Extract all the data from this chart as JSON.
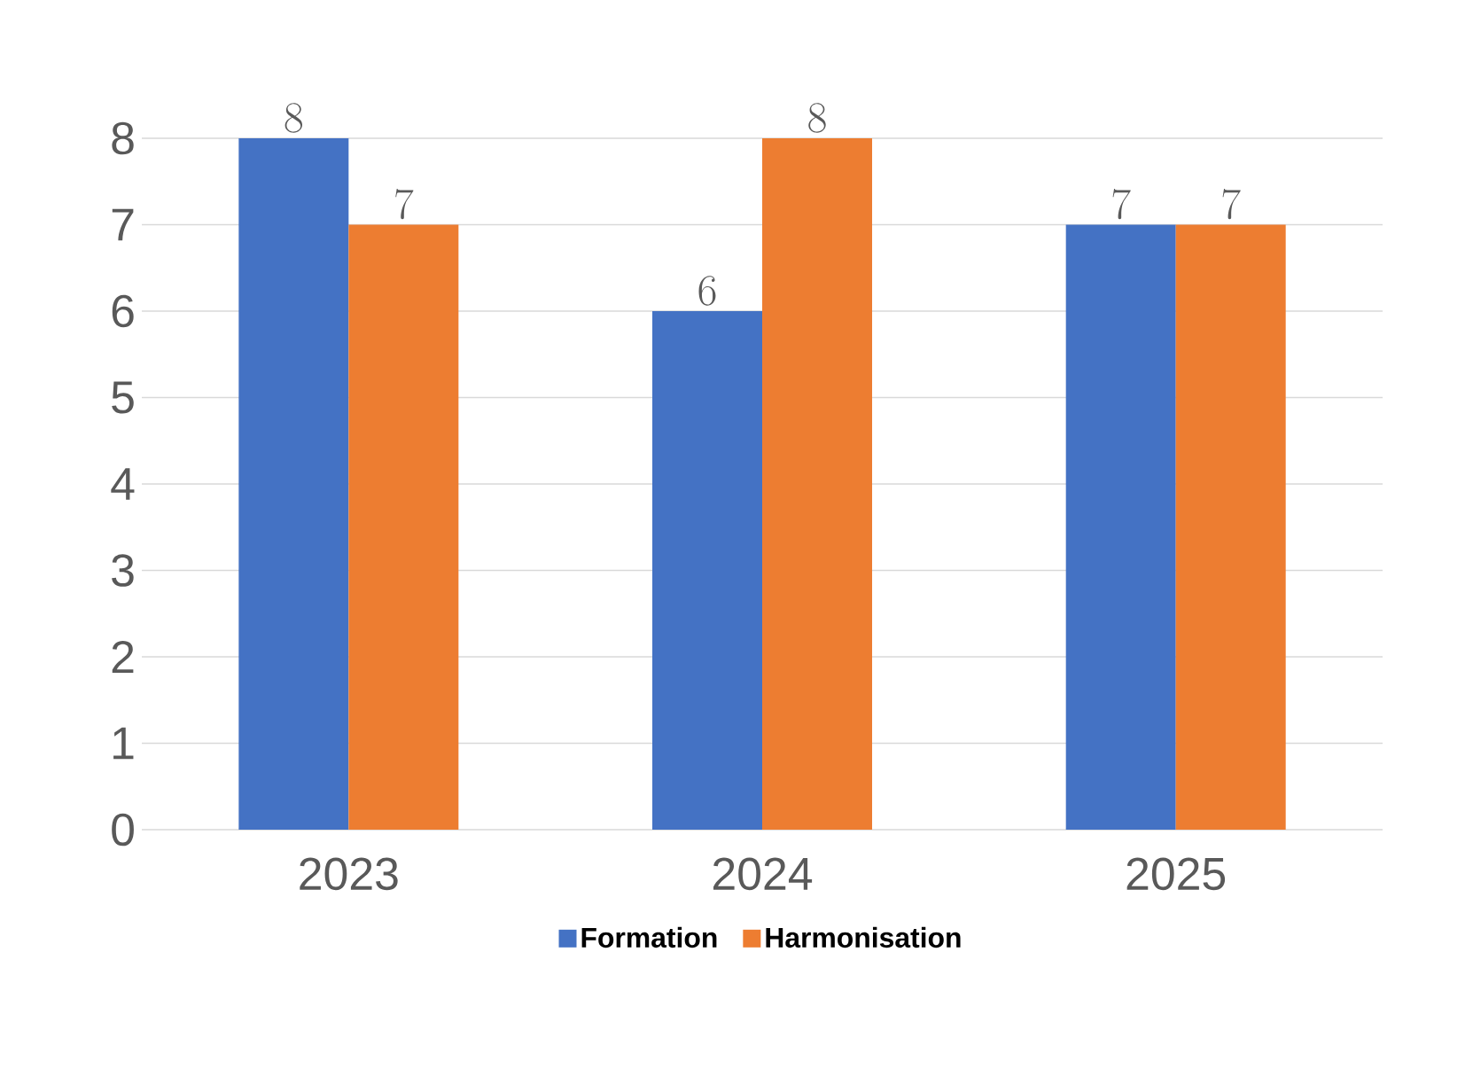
{
  "chart_data": {
    "type": "bar",
    "categories": [
      "2023",
      "2024",
      "2025"
    ],
    "series": [
      {
        "name": "Formation",
        "color": "#4472c4",
        "values": [
          8,
          6,
          7
        ]
      },
      {
        "name": "Harmonisation",
        "color": "#ed7d31",
        "values": [
          7,
          8,
          7
        ]
      }
    ],
    "ylim": [
      0,
      8
    ],
    "yticks": [
      0,
      1,
      2,
      3,
      4,
      5,
      6,
      7,
      8
    ],
    "grid": "y",
    "legend": "bottom",
    "data_labels": true
  }
}
